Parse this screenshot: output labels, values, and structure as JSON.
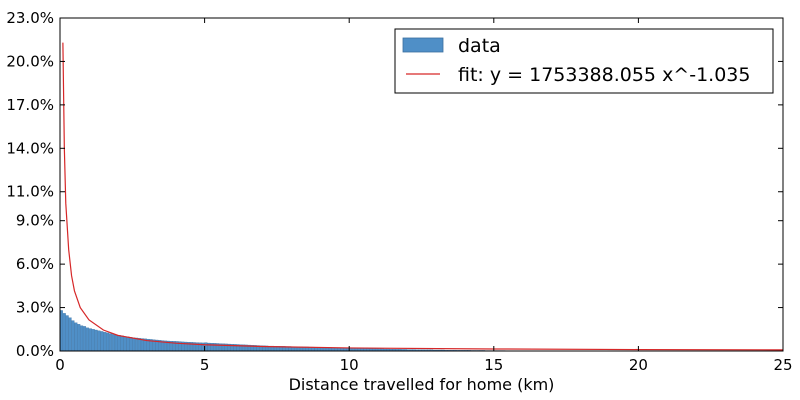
{
  "chart_data": {
    "type": "bar",
    "title": "",
    "xlabel": "Distance travelled for home (km)",
    "ylabel": "",
    "xlim": [
      0,
      25
    ],
    "ylim": [
      0,
      23
    ],
    "grid": false,
    "legend_position": "top-right",
    "x_ticks": [
      0,
      5,
      10,
      15,
      20,
      25
    ],
    "x_tick_labels": [
      "0",
      "5",
      "10",
      "15",
      "20",
      "25"
    ],
    "y_ticks": [
      0,
      3,
      6,
      9,
      11,
      14,
      17,
      20,
      23
    ],
    "y_tick_labels": [
      "0.0%",
      "3.0%",
      "6.0%",
      "9.0%",
      "11.0%",
      "14.0%",
      "17.0%",
      "20.0%",
      "23.0%"
    ],
    "series": [
      {
        "name": "data",
        "kind": "bar",
        "color": "#4f8fc7",
        "edge_color": "#3b6f9f",
        "bin_width": 0.1,
        "bin_start": 0.0,
        "values_percent": [
          2.8,
          2.6,
          2.45,
          2.3,
          2.1,
          1.95,
          1.85,
          1.75,
          1.7,
          1.6,
          1.55,
          1.5,
          1.45,
          1.4,
          1.35,
          1.3,
          1.25,
          1.2,
          1.15,
          1.1,
          1.08,
          1.05,
          1.0,
          0.98,
          0.95,
          0.92,
          0.9,
          0.88,
          0.86,
          0.84,
          0.82,
          0.8,
          0.78,
          0.76,
          0.74,
          0.72,
          0.7,
          0.69,
          0.68,
          0.67,
          0.66,
          0.65,
          0.63,
          0.62,
          0.61,
          0.6,
          0.59,
          0.58,
          0.57,
          0.56,
          0.58,
          0.55,
          0.54,
          0.53,
          0.52,
          0.51,
          0.5,
          0.49,
          0.48,
          0.47,
          0.46,
          0.45,
          0.44,
          0.43,
          0.42,
          0.41,
          0.4,
          0.39,
          0.38,
          0.37,
          0.36,
          0.35,
          0.34,
          0.34,
          0.33,
          0.33,
          0.32,
          0.32,
          0.31,
          0.31,
          0.3,
          0.3,
          0.29,
          0.29,
          0.28,
          0.28,
          0.27,
          0.27,
          0.26,
          0.26,
          0.25,
          0.25,
          0.24,
          0.24,
          0.23,
          0.23,
          0.22,
          0.22,
          0.21,
          0.21,
          0.2,
          0.2,
          0.19,
          0.19,
          0.18,
          0.18,
          0.17,
          0.17,
          0.16,
          0.16,
          0.15,
          0.15,
          0.14,
          0.14,
          0.13,
          0.13,
          0.12,
          0.12,
          0.11,
          0.11,
          0.1,
          0.1,
          0.1,
          0.09,
          0.09,
          0.09,
          0.08,
          0.08,
          0.08,
          0.07,
          0.07,
          0.07,
          0.07,
          0.06,
          0.06,
          0.06,
          0.06,
          0.05,
          0.05,
          0.05,
          0.05,
          0.05,
          0.04,
          0.04,
          0.04,
          0.04,
          0.04,
          0.03,
          0.03,
          0.03,
          0.03,
          0.03,
          0.03,
          0.03,
          0.02,
          0.02,
          0.02,
          0.02,
          0.02,
          0.02,
          0.02,
          0.02,
          0.02,
          0.02,
          0.01,
          0.01,
          0.01,
          0.01,
          0.01,
          0.01,
          0.01,
          0.01,
          0.01,
          0.01,
          0.01,
          0.01,
          0.01,
          0.01,
          0.01,
          0.01,
          0.01,
          0.01,
          0.01,
          0.01,
          0.01,
          0.01,
          0.01,
          0.01,
          0.01,
          0.01,
          0.01,
          0.01,
          0.01,
          0.01,
          0.01,
          0.01,
          0.01,
          0.01,
          0.01,
          0.01,
          0.01,
          0.01,
          0.01,
          0.01,
          0.01,
          0.01,
          0.01,
          0.01,
          0.01,
          0.01,
          0.01,
          0.01,
          0.01,
          0.01,
          0.01,
          0.01,
          0.01,
          0.01,
          0.01,
          0.01,
          0.01,
          0.01,
          0.01,
          0.01,
          0.01,
          0.01,
          0.01,
          0.01,
          0.01,
          0.01,
          0.01,
          0.01,
          0.01,
          0.01,
          0.01,
          0.01,
          0.01,
          0.01,
          0.01,
          0.01,
          0.01,
          0.01,
          0.01,
          0.01,
          0.01,
          0.01,
          0.01,
          0.01,
          0.01,
          0.01,
          0.01
        ]
      },
      {
        "name": "fit: y = 1753388.055 x^-1.035",
        "kind": "line",
        "color": "#d62728",
        "x": [
          0.1,
          0.15,
          0.2,
          0.3,
          0.4,
          0.5,
          0.7,
          1.0,
          1.5,
          2.0,
          3.0,
          4.0,
          5.0,
          7.0,
          10.0,
          15.0,
          20.0,
          25.0
        ],
        "y_percent": [
          21.3,
          14.0,
          10.2,
          7.0,
          5.2,
          4.15,
          3.0,
          2.15,
          1.45,
          1.08,
          0.72,
          0.54,
          0.43,
          0.31,
          0.21,
          0.14,
          0.1,
          0.08
        ]
      }
    ]
  }
}
